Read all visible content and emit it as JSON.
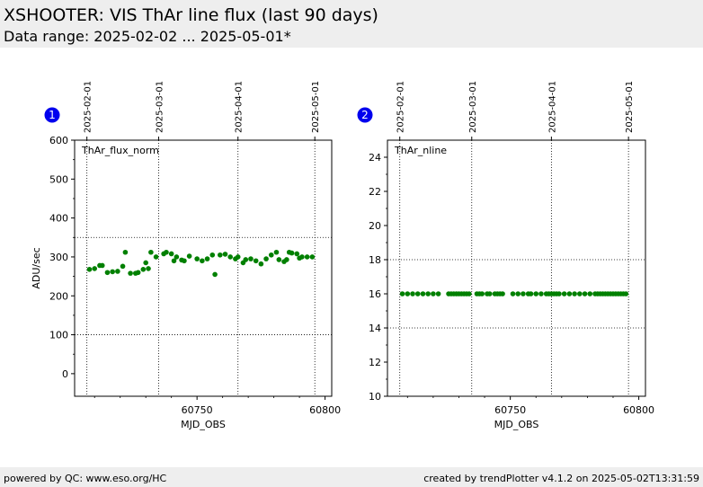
{
  "header": {
    "title": "XSHOOTER: VIS ThAr line flux (last 90 days)",
    "subtitle": "Data range: 2025-02-02 ... 2025-05-01*"
  },
  "footer": {
    "left": "powered by QC: www.eso.org/HC",
    "right": "created by trendPlotter v4.1.2 on 2025-05-02T13:31:59"
  },
  "chart_data": [
    {
      "id": "1",
      "type": "scatter",
      "annotation": "ThAr_flux_norm",
      "xlabel": "MJD_OBS",
      "ylabel": "ADU/sec",
      "xlim": [
        60702.2,
        60802.6
      ],
      "ylim": [
        -58,
        600
      ],
      "yticks": [
        0,
        100,
        200,
        300,
        400,
        500,
        600
      ],
      "xticks": [
        60750,
        60800
      ],
      "threshold_y": [
        350,
        100
      ],
      "date_ticks": [
        {
          "label": "2025-02-01",
          "mjd": 60707
        },
        {
          "label": "2025-03-01",
          "mjd": 60735
        },
        {
          "label": "2025-04-01",
          "mjd": 60766
        },
        {
          "label": "2025-05-01",
          "mjd": 60796
        }
      ],
      "marker_color": "#008000",
      "x": [
        60708,
        60710,
        60712,
        60713,
        60715,
        60717,
        60719,
        60721,
        60722,
        60724,
        60726,
        60727,
        60729,
        60730,
        60731,
        60732,
        60734,
        60737,
        60738,
        60740,
        60741,
        60742,
        60744,
        60745,
        60747,
        60750,
        60752,
        60754,
        60756,
        60757,
        60759,
        60761,
        60763,
        60765,
        60766,
        60768,
        60769,
        60771,
        60773,
        60775,
        60777,
        60779,
        60781,
        60782,
        60784,
        60785,
        60786,
        60787,
        60789,
        60790,
        60791,
        60793,
        60795
      ],
      "y": [
        268,
        270,
        278,
        278,
        260,
        262,
        263,
        276,
        312,
        258,
        258,
        260,
        268,
        285,
        270,
        312,
        300,
        308,
        312,
        308,
        290,
        300,
        292,
        290,
        302,
        295,
        290,
        295,
        305,
        255,
        305,
        307,
        300,
        295,
        300,
        285,
        293,
        295,
        290,
        282,
        295,
        305,
        312,
        293,
        288,
        293,
        312,
        310,
        308,
        297,
        300,
        300,
        300
      ]
    },
    {
      "id": "2",
      "type": "scatter",
      "annotation": "ThAr_nline",
      "xlabel": "MJD_OBS",
      "ylabel": "",
      "xlim": [
        60702.2,
        60802.6
      ],
      "ylim": [
        10,
        25
      ],
      "yticks": [
        10,
        12,
        14,
        16,
        18,
        20,
        22,
        24
      ],
      "xticks": [
        60750,
        60800
      ],
      "threshold_y": [
        18,
        14
      ],
      "date_ticks": [
        {
          "label": "2025-02-01",
          "mjd": 60707
        },
        {
          "label": "2025-03-01",
          "mjd": 60735
        },
        {
          "label": "2025-04-01",
          "mjd": 60766
        },
        {
          "label": "2025-05-01",
          "mjd": 60796
        }
      ],
      "marker_color": "#008000",
      "x": [
        60708,
        60710,
        60712,
        60714,
        60716,
        60718,
        60720,
        60722,
        60726,
        60727,
        60728,
        60729,
        60730,
        60731,
        60732,
        60733,
        60734,
        60737,
        60738,
        60739,
        60741,
        60742,
        60744,
        60745,
        60746,
        60747,
        60751,
        60753,
        60755,
        60757,
        60758,
        60760,
        60762,
        60764,
        60765,
        60766,
        60767,
        60768,
        60769,
        60771,
        60773,
        60775,
        60777,
        60779,
        60781,
        60783,
        60784,
        60785,
        60786,
        60787,
        60788,
        60789,
        60790,
        60791,
        60792,
        60793,
        60794,
        60795
      ],
      "y": [
        16,
        16,
        16,
        16,
        16,
        16,
        16,
        16,
        16,
        16,
        16,
        16,
        16,
        16,
        16,
        16,
        16,
        16,
        16,
        16,
        16,
        16,
        16,
        16,
        16,
        16,
        16,
        16,
        16,
        16,
        16,
        16,
        16,
        16,
        16,
        16,
        16,
        16,
        16,
        16,
        16,
        16,
        16,
        16,
        16,
        16,
        16,
        16,
        16,
        16,
        16,
        16,
        16,
        16,
        16,
        16,
        16,
        16
      ]
    }
  ]
}
